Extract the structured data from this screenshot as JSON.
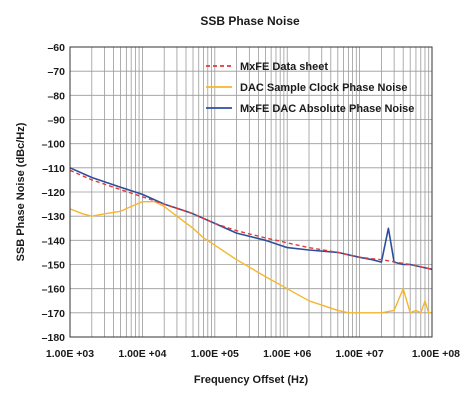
{
  "chart_data": {
    "type": "line",
    "title": "SSB Phase Noise",
    "xlabel": "Frequency Offset (Hz)",
    "ylabel": "SSB Phase Noise (dBc/Hz)",
    "xscale": "log",
    "xlim": [
      1000,
      100000000
    ],
    "ylim": [
      -180,
      -60
    ],
    "x_ticks": [
      1000,
      10000,
      100000,
      1000000,
      10000000,
      100000000
    ],
    "x_tick_labels": [
      "1.00E +03",
      "1.00E +04",
      "1.00E +05",
      "1.00E +06",
      "1.00E +07",
      "1.00E +08"
    ],
    "y_ticks": [
      -60,
      -70,
      -80,
      -90,
      -100,
      -110,
      -120,
      -130,
      -140,
      -150,
      -160,
      -170,
      -180
    ],
    "y_tick_labels": [
      "–60",
      "–70",
      "–80",
      "–90",
      "–100",
      "–110",
      "–120",
      "–130",
      "–140",
      "–150",
      "–160",
      "–170",
      "–180"
    ],
    "grid": true,
    "legend_position": "top-right",
    "series": [
      {
        "name": "MxFE Data sheet",
        "color": "#e03a3a",
        "style": "dashed",
        "x": [
          1000,
          2000,
          5000,
          10000,
          20000,
          50000,
          100000,
          200000,
          500000,
          1000000,
          2000000,
          5000000,
          10000000,
          20000000,
          50000000,
          100000000
        ],
        "y": [
          -111,
          -115,
          -119,
          -122,
          -125,
          -129,
          -133,
          -136,
          -139,
          -141,
          -143,
          -145,
          -147,
          -148,
          -150,
          -152
        ]
      },
      {
        "name": "DAC Sample Clock Phase Noise",
        "color": "#f5b62e",
        "style": "solid",
        "x": [
          1000,
          1500,
          2000,
          3000,
          5000,
          7000,
          10000,
          15000,
          20000,
          30000,
          50000,
          70000,
          100000,
          200000,
          500000,
          1000000,
          2000000,
          5000000,
          7000000,
          10000000,
          20000000,
          30000000,
          40000000,
          50000000,
          60000000,
          70000000,
          80000000,
          90000000,
          100000000
        ],
        "y": [
          -127,
          -129,
          -130,
          -129,
          -128,
          -126,
          -124,
          -124,
          -126,
          -130,
          -135,
          -139,
          -142,
          -148,
          -155,
          -160,
          -165,
          -169,
          -170,
          -170,
          -170,
          -169,
          -160,
          -170,
          -169,
          -170,
          -165,
          -170,
          -170
        ]
      },
      {
        "name": "MxFE DAC Absolute Phase Noise",
        "color": "#2b4f9e",
        "style": "solid",
        "x": [
          1000,
          2000,
          5000,
          10000,
          20000,
          40000,
          50000,
          100000,
          200000,
          500000,
          1000000,
          2000000,
          5000000,
          10000000,
          15000000,
          20000000,
          25000000,
          30000000,
          40000000,
          50000000,
          70000000,
          100000000
        ],
        "y": [
          -110,
          -114,
          -118,
          -121,
          -125,
          -128,
          -129,
          -133,
          -137,
          -140,
          -143,
          -144,
          -145,
          -147,
          -148,
          -149,
          -135,
          -149,
          -150,
          -150,
          -151,
          -152
        ]
      }
    ]
  }
}
